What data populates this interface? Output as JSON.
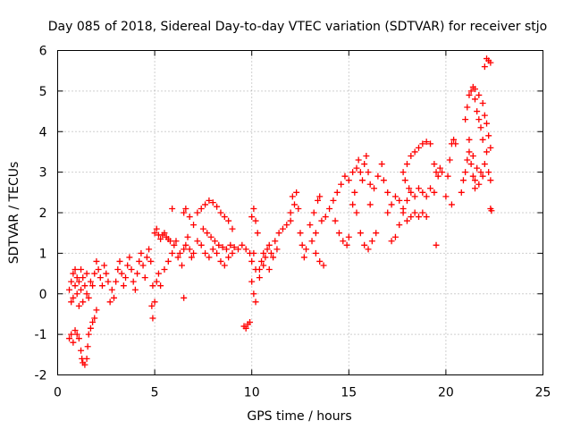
{
  "chart_data": {
    "type": "scatter",
    "title": "Day 085 of 2018, Sidereal Day-to-day VTEC variation (SDTVAR) for receiver stjo",
    "xlabel": "GPS time / hours",
    "ylabel": "SDTVAR / TECUs",
    "xlim": [
      0,
      25
    ],
    "ylim": [
      -2,
      6
    ],
    "xticks": [
      "0",
      "5",
      "10",
      "15",
      "20",
      "25"
    ],
    "yticks": [
      "-2",
      "-1",
      "0",
      "1",
      "2",
      "3",
      "4",
      "5",
      "6"
    ],
    "xtick_values": [
      0,
      5,
      10,
      15,
      20,
      25
    ],
    "ytick_values": [
      -2,
      -1,
      0,
      1,
      2,
      3,
      4,
      5,
      6
    ],
    "grid": true,
    "marker": "+",
    "color": "#ff0000",
    "series": [
      {
        "name": "SDTVAR",
        "points": [
          [
            0.6,
            0.1
          ],
          [
            0.7,
            0.3
          ],
          [
            0.7,
            -0.2
          ],
          [
            0.8,
            0.5
          ],
          [
            0.8,
            -0.1
          ],
          [
            0.9,
            0.2
          ],
          [
            0.9,
            0.6
          ],
          [
            1.0,
            0.0
          ],
          [
            1.0,
            0.4
          ],
          [
            1.1,
            -0.3
          ],
          [
            1.1,
            0.3
          ],
          [
            1.2,
            0.1
          ],
          [
            1.2,
            0.6
          ],
          [
            1.3,
            -0.2
          ],
          [
            1.3,
            0.4
          ],
          [
            1.4,
            0.2
          ],
          [
            1.5,
            0.0
          ],
          [
            1.5,
            0.5
          ],
          [
            1.6,
            -0.1
          ],
          [
            1.7,
            0.3
          ],
          [
            0.6,
            -1.1
          ],
          [
            0.7,
            -1.0
          ],
          [
            0.8,
            -1.2
          ],
          [
            0.9,
            -0.9
          ],
          [
            1.0,
            -1.0
          ],
          [
            1.1,
            -1.1
          ],
          [
            1.2,
            -1.4
          ],
          [
            1.25,
            -1.6
          ],
          [
            1.3,
            -1.7
          ],
          [
            1.4,
            -1.75
          ],
          [
            1.5,
            -1.6
          ],
          [
            1.55,
            -1.3
          ],
          [
            1.6,
            -1.0
          ],
          [
            1.7,
            -0.85
          ],
          [
            1.8,
            -0.7
          ],
          [
            1.9,
            -0.6
          ],
          [
            2.0,
            -0.4
          ],
          [
            1.8,
            0.2
          ],
          [
            1.9,
            0.5
          ],
          [
            2.0,
            0.8
          ],
          [
            2.1,
            0.6
          ],
          [
            2.2,
            0.4
          ],
          [
            2.3,
            0.2
          ],
          [
            2.4,
            0.7
          ],
          [
            2.5,
            0.5
          ],
          [
            2.6,
            0.3
          ],
          [
            2.7,
            -0.2
          ],
          [
            2.8,
            0.1
          ],
          [
            2.9,
            -0.1
          ],
          [
            3.0,
            0.3
          ],
          [
            3.1,
            0.6
          ],
          [
            3.2,
            0.8
          ],
          [
            3.3,
            0.5
          ],
          [
            3.4,
            0.2
          ],
          [
            3.5,
            0.4
          ],
          [
            3.6,
            0.7
          ],
          [
            3.7,
            0.9
          ],
          [
            3.8,
            0.6
          ],
          [
            3.9,
            0.3
          ],
          [
            4.0,
            0.1
          ],
          [
            4.1,
            0.5
          ],
          [
            4.2,
            0.8
          ],
          [
            4.3,
            1.0
          ],
          [
            4.4,
            0.7
          ],
          [
            4.5,
            0.4
          ],
          [
            4.6,
            0.9
          ],
          [
            4.7,
            1.1
          ],
          [
            4.8,
            0.8
          ],
          [
            4.9,
            0.2
          ],
          [
            4.85,
            -0.3
          ],
          [
            4.9,
            -0.6
          ],
          [
            5.0,
            -0.2
          ],
          [
            5.1,
            0.3
          ],
          [
            5.2,
            0.5
          ],
          [
            5.3,
            0.2
          ],
          [
            5.5,
            0.6
          ],
          [
            5.7,
            0.8
          ],
          [
            5.9,
            1.0
          ],
          [
            5.0,
            1.5
          ],
          [
            5.1,
            1.6
          ],
          [
            5.2,
            1.45
          ],
          [
            5.3,
            1.35
          ],
          [
            5.4,
            1.45
          ],
          [
            5.5,
            1.5
          ],
          [
            5.6,
            1.4
          ],
          [
            5.7,
            1.35
          ],
          [
            5.8,
            1.3
          ],
          [
            6.0,
            1.2
          ],
          [
            6.1,
            1.3
          ],
          [
            6.2,
            0.9
          ],
          [
            6.3,
            1.0
          ],
          [
            6.4,
            0.7
          ],
          [
            6.5,
            1.1
          ],
          [
            6.6,
            1.2
          ],
          [
            6.7,
            1.4
          ],
          [
            6.8,
            1.1
          ],
          [
            6.9,
            0.9
          ],
          [
            7.0,
            1.0
          ],
          [
            6.5,
            2.0
          ],
          [
            6.6,
            2.1
          ],
          [
            6.8,
            1.9
          ],
          [
            7.0,
            1.7
          ],
          [
            6.5,
            -0.1
          ],
          [
            5.9,
            2.1
          ],
          [
            7.2,
            1.3
          ],
          [
            7.4,
            1.2
          ],
          [
            7.6,
            1.0
          ],
          [
            7.8,
            0.9
          ],
          [
            8.0,
            1.1
          ],
          [
            8.2,
            1.0
          ],
          [
            8.4,
            0.8
          ],
          [
            8.6,
            0.7
          ],
          [
            8.8,
            0.9
          ],
          [
            9.0,
            1.0
          ],
          [
            7.2,
            2.0
          ],
          [
            7.4,
            2.1
          ],
          [
            7.6,
            2.2
          ],
          [
            7.8,
            2.3
          ],
          [
            8.0,
            2.25
          ],
          [
            8.2,
            2.15
          ],
          [
            8.4,
            2.0
          ],
          [
            8.6,
            1.9
          ],
          [
            8.8,
            1.8
          ],
          [
            9.0,
            1.6
          ],
          [
            7.5,
            1.6
          ],
          [
            7.7,
            1.5
          ],
          [
            7.9,
            1.4
          ],
          [
            8.1,
            1.3
          ],
          [
            8.3,
            1.2
          ],
          [
            8.5,
            1.15
          ],
          [
            8.7,
            1.1
          ],
          [
            8.9,
            1.2
          ],
          [
            9.1,
            1.15
          ],
          [
            9.3,
            1.1
          ],
          [
            9.5,
            1.2
          ],
          [
            9.7,
            1.1
          ],
          [
            9.9,
            1.0
          ],
          [
            9.6,
            -0.8
          ],
          [
            9.7,
            -0.85
          ],
          [
            9.8,
            -0.75
          ],
          [
            9.9,
            -0.7
          ],
          [
            10.0,
            1.9
          ],
          [
            10.1,
            2.1
          ],
          [
            10.2,
            1.8
          ],
          [
            10.3,
            1.5
          ],
          [
            10.1,
            1.0
          ],
          [
            10.0,
            0.8
          ],
          [
            10.2,
            0.6
          ],
          [
            10.0,
            0.3
          ],
          [
            10.1,
            0.0
          ],
          [
            10.2,
            -0.2
          ],
          [
            10.4,
            0.6
          ],
          [
            10.5,
            0.8
          ],
          [
            10.6,
            1.0
          ],
          [
            10.7,
            0.9
          ],
          [
            10.8,
            1.1
          ],
          [
            10.9,
            1.2
          ],
          [
            11.0,
            1.0
          ],
          [
            11.2,
            1.3
          ],
          [
            11.4,
            1.5
          ],
          [
            11.6,
            1.6
          ],
          [
            11.8,
            1.7
          ],
          [
            12.0,
            1.8
          ],
          [
            10.4,
            0.4
          ],
          [
            10.6,
            0.7
          ],
          [
            10.9,
            0.6
          ],
          [
            11.1,
            0.9
          ],
          [
            11.3,
            1.1
          ],
          [
            12.0,
            2.0
          ],
          [
            12.2,
            2.2
          ],
          [
            12.3,
            2.5
          ],
          [
            12.4,
            2.1
          ],
          [
            12.1,
            2.4
          ],
          [
            12.5,
            1.5
          ],
          [
            12.6,
            1.2
          ],
          [
            12.7,
            0.9
          ],
          [
            12.8,
            1.1
          ],
          [
            13.0,
            1.7
          ],
          [
            13.2,
            2.0
          ],
          [
            13.4,
            2.3
          ],
          [
            13.5,
            2.4
          ],
          [
            13.1,
            1.3
          ],
          [
            13.3,
            1.0
          ],
          [
            13.5,
            0.8
          ],
          [
            13.7,
            0.7
          ],
          [
            13.3,
            1.5
          ],
          [
            13.6,
            1.8
          ],
          [
            13.8,
            1.9
          ],
          [
            14.0,
            2.1
          ],
          [
            14.2,
            2.3
          ],
          [
            14.4,
            2.5
          ],
          [
            14.6,
            2.7
          ],
          [
            14.8,
            2.9
          ],
          [
            15.0,
            2.8
          ],
          [
            15.2,
            3.0
          ],
          [
            14.3,
            1.8
          ],
          [
            14.5,
            1.5
          ],
          [
            14.7,
            1.3
          ],
          [
            14.9,
            1.2
          ],
          [
            15.0,
            1.4
          ],
          [
            15.2,
            2.2
          ],
          [
            15.3,
            2.5
          ],
          [
            15.4,
            3.1
          ],
          [
            15.5,
            3.3
          ],
          [
            15.6,
            3.0
          ],
          [
            15.7,
            2.8
          ],
          [
            15.8,
            3.2
          ],
          [
            15.9,
            3.4
          ],
          [
            16.0,
            3.0
          ],
          [
            16.1,
            2.7
          ],
          [
            15.4,
            2.0
          ],
          [
            15.6,
            1.5
          ],
          [
            15.8,
            1.2
          ],
          [
            16.0,
            1.1
          ],
          [
            16.2,
            1.3
          ],
          [
            16.4,
            1.5
          ],
          [
            16.1,
            2.2
          ],
          [
            16.3,
            2.6
          ],
          [
            16.5,
            2.9
          ],
          [
            16.7,
            3.2
          ],
          [
            16.8,
            2.8
          ],
          [
            17.0,
            2.5
          ],
          [
            17.0,
            2.0
          ],
          [
            17.2,
            2.2
          ],
          [
            17.4,
            2.4
          ],
          [
            17.6,
            2.3
          ],
          [
            17.8,
            2.1
          ],
          [
            18.0,
            2.3
          ],
          [
            18.2,
            2.5
          ],
          [
            18.4,
            2.4
          ],
          [
            18.6,
            2.6
          ],
          [
            18.8,
            2.5
          ],
          [
            19.0,
            2.4
          ],
          [
            19.2,
            2.6
          ],
          [
            19.4,
            2.5
          ],
          [
            17.2,
            1.3
          ],
          [
            17.4,
            1.4
          ],
          [
            17.6,
            1.7
          ],
          [
            17.8,
            2.0
          ],
          [
            18.0,
            1.8
          ],
          [
            18.2,
            1.9
          ],
          [
            18.4,
            2.0
          ],
          [
            18.6,
            1.9
          ],
          [
            18.8,
            2.0
          ],
          [
            19.0,
            1.9
          ],
          [
            17.8,
            3.0
          ],
          [
            18.0,
            3.2
          ],
          [
            18.2,
            3.4
          ],
          [
            18.4,
            3.5
          ],
          [
            18.6,
            3.6
          ],
          [
            18.8,
            3.7
          ],
          [
            19.0,
            3.75
          ],
          [
            19.2,
            3.7
          ],
          [
            17.9,
            2.8
          ],
          [
            18.1,
            2.6
          ],
          [
            19.4,
            3.2
          ],
          [
            19.5,
            3.0
          ],
          [
            19.6,
            2.9
          ],
          [
            19.7,
            3.1
          ],
          [
            19.8,
            3.0
          ],
          [
            19.5,
            1.2
          ],
          [
            20.0,
            2.4
          ],
          [
            20.1,
            2.9
          ],
          [
            20.2,
            3.3
          ],
          [
            20.3,
            3.7
          ],
          [
            20.4,
            3.8
          ],
          [
            20.5,
            3.7
          ],
          [
            20.3,
            2.2
          ],
          [
            20.8,
            2.5
          ],
          [
            20.9,
            2.8
          ],
          [
            21.0,
            3.0
          ],
          [
            21.1,
            3.3
          ],
          [
            21.2,
            3.5
          ],
          [
            21.3,
            3.2
          ],
          [
            21.4,
            2.9
          ],
          [
            21.5,
            2.8
          ],
          [
            21.0,
            4.3
          ],
          [
            21.1,
            4.6
          ],
          [
            21.2,
            4.9
          ],
          [
            21.3,
            5.0
          ],
          [
            21.4,
            5.1
          ],
          [
            21.5,
            4.8
          ],
          [
            21.6,
            4.5
          ],
          [
            21.7,
            4.3
          ],
          [
            21.8,
            4.1
          ],
          [
            21.9,
            3.8
          ],
          [
            21.2,
            3.8
          ],
          [
            21.4,
            3.4
          ],
          [
            21.6,
            3.1
          ],
          [
            21.8,
            3.0
          ],
          [
            22.0,
            3.2
          ],
          [
            22.1,
            3.5
          ],
          [
            21.5,
            2.6
          ],
          [
            21.7,
            2.7
          ],
          [
            21.9,
            2.9
          ],
          [
            21.5,
            5.05
          ],
          [
            21.7,
            4.9
          ],
          [
            21.9,
            4.7
          ],
          [
            22.0,
            4.4
          ],
          [
            22.1,
            4.2
          ],
          [
            22.2,
            3.9
          ],
          [
            22.3,
            3.6
          ],
          [
            22.2,
            3.0
          ],
          [
            22.3,
            2.8
          ],
          [
            22.3,
            2.1
          ],
          [
            22.35,
            2.05
          ],
          [
            22.0,
            5.6
          ],
          [
            22.1,
            5.8
          ],
          [
            22.2,
            5.75
          ],
          [
            22.3,
            5.7
          ]
        ]
      }
    ]
  }
}
